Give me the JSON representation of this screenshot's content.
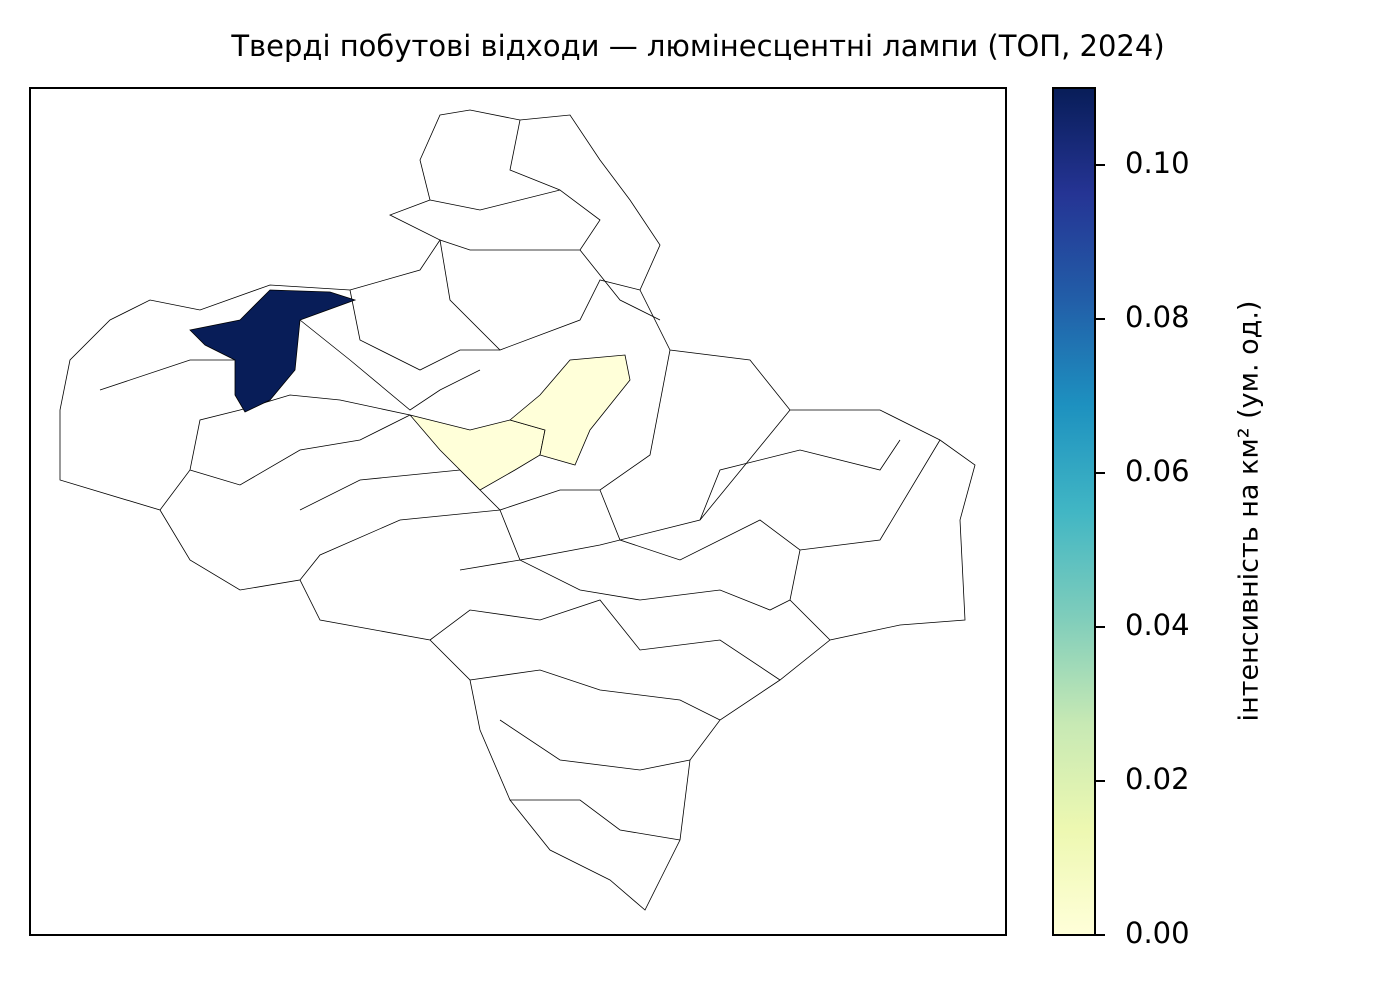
{
  "chart_data": {
    "type": "choropleth",
    "title": "Тверді побутові відходи — люмінесцентні лампи (ТОП, 2024)",
    "colorbar_label": "інтенсивність на км² (ум. од.)",
    "colormap": "YlGnBu",
    "values": [
      0.11,
      0,
      0
    ],
    "ylim": [
      0,
      0.11
    ],
    "yticks": [
      {
        "value": 0,
        "label": "0.00"
      },
      {
        "value": 0.02,
        "label": "0.02"
      },
      {
        "value": 0.04,
        "label": "0.04"
      },
      {
        "value": 0.06,
        "label": "0.06"
      },
      {
        "value": 0.08,
        "label": "0.08"
      },
      {
        "value": 0.1,
        "label": "0.10"
      }
    ]
  }
}
